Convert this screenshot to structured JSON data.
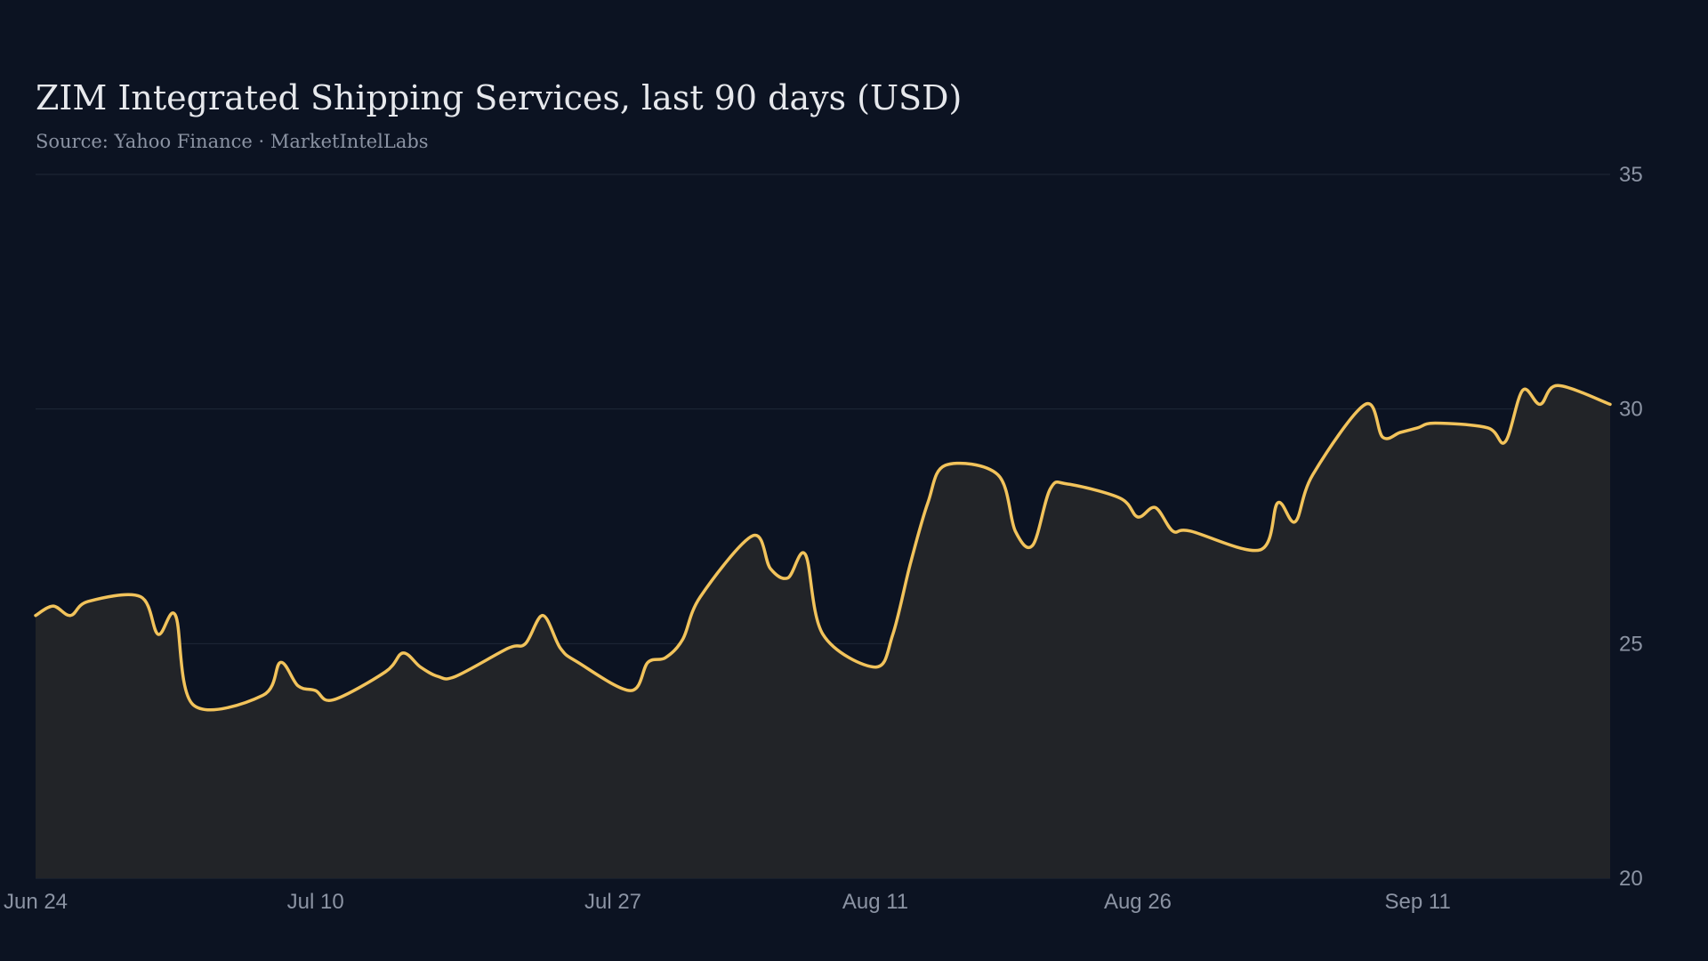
{
  "chart_data": {
    "type": "area",
    "title": "ZIM Integrated Shipping Services, last 90 days (USD)",
    "subtitle": "Source: Yahoo Finance · MarketIntelLabs",
    "xlabel": "",
    "ylabel": "",
    "x_ticks": [
      "Jun 24",
      "Jul 10",
      "Jul 27",
      "Aug 11",
      "Aug 26",
      "Sep 11"
    ],
    "y_ticks": [
      20,
      25,
      30,
      35
    ],
    "ylim": [
      20,
      35
    ],
    "y_axis_side": "right",
    "grid": "horizontal",
    "legend": "none",
    "line_color": "#f2c35b",
    "fill_color": "#222428",
    "x_start": "2025-06-24",
    "dates": [
      "2025-06-24",
      "2025-06-25",
      "2025-06-26",
      "2025-06-27",
      "2025-06-30",
      "2025-07-01",
      "2025-07-02",
      "2025-07-03",
      "2025-07-07",
      "2025-07-08",
      "2025-07-09",
      "2025-07-10",
      "2025-07-11",
      "2025-07-14",
      "2025-07-15",
      "2025-07-16",
      "2025-07-17",
      "2025-07-18",
      "2025-07-21",
      "2025-07-22",
      "2025-07-23",
      "2025-07-24",
      "2025-07-25",
      "2025-07-28",
      "2025-07-29",
      "2025-07-30",
      "2025-07-31",
      "2025-08-01",
      "2025-08-04",
      "2025-08-05",
      "2025-08-06",
      "2025-08-07",
      "2025-08-08",
      "2025-08-11",
      "2025-08-12",
      "2025-08-13",
      "2025-08-14",
      "2025-08-15",
      "2025-08-18",
      "2025-08-19",
      "2025-08-20",
      "2025-08-21",
      "2025-08-22",
      "2025-08-25",
      "2025-08-26",
      "2025-08-27",
      "2025-08-28",
      "2025-08-29",
      "2025-09-02",
      "2025-09-03",
      "2025-09-04",
      "2025-09-05",
      "2025-09-08",
      "2025-09-09",
      "2025-09-10",
      "2025-09-11",
      "2025-09-12",
      "2025-09-15",
      "2025-09-16",
      "2025-09-17",
      "2025-09-18",
      "2025-09-19",
      "2025-09-22"
    ],
    "values": [
      25.6,
      25.8,
      25.6,
      25.9,
      26.0,
      25.2,
      25.6,
      23.7,
      23.9,
      24.6,
      24.1,
      24.0,
      23.8,
      24.4,
      24.8,
      24.5,
      24.3,
      24.3,
      24.9,
      25.0,
      25.6,
      24.9,
      24.6,
      24.0,
      24.6,
      24.7,
      25.1,
      26.0,
      27.3,
      26.6,
      26.4,
      26.9,
      25.2,
      24.5,
      25.2,
      26.7,
      28.0,
      28.8,
      28.6,
      27.4,
      27.1,
      28.3,
      28.4,
      28.1,
      27.7,
      27.9,
      27.4,
      27.4,
      27.0,
      28.0,
      27.6,
      28.6,
      30.1,
      29.4,
      29.5,
      29.6,
      29.7,
      29.6,
      29.3,
      30.4,
      30.1,
      30.5,
      30.1
    ]
  }
}
